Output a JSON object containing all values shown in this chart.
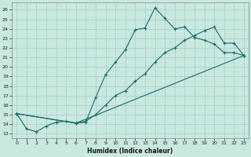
{
  "xlabel": "Humidex (Indice chaleur)",
  "xlim": [
    -0.5,
    23.5
  ],
  "ylim": [
    12.5,
    26.8
  ],
  "xticks": [
    0,
    1,
    2,
    3,
    4,
    5,
    6,
    7,
    8,
    9,
    10,
    11,
    12,
    13,
    14,
    15,
    16,
    17,
    18,
    19,
    20,
    21,
    22,
    23
  ],
  "yticks": [
    13,
    14,
    15,
    16,
    17,
    18,
    19,
    20,
    21,
    22,
    23,
    24,
    25,
    26
  ],
  "bg_color": "#c8e8e0",
  "grid_color": "#a8ccc8",
  "line_color": "#1a6b6b",
  "series1_x": [
    0,
    1,
    2,
    3,
    4,
    5,
    6,
    7,
    8,
    9,
    10,
    11,
    12,
    13,
    14,
    15,
    16,
    17,
    18,
    19,
    20,
    21,
    22,
    23
  ],
  "series1_y": [
    15.1,
    13.5,
    13.2,
    13.8,
    14.2,
    14.3,
    14.1,
    14.2,
    16.8,
    19.2,
    20.5,
    21.8,
    23.9,
    24.1,
    26.2,
    25.1,
    24.0,
    24.2,
    23.1,
    22.8,
    22.4,
    21.5,
    21.5,
    21.2
  ],
  "series2_x": [
    0,
    6,
    7,
    8,
    9,
    10,
    11,
    12,
    13,
    14,
    15,
    16,
    17,
    18,
    19,
    20,
    21,
    22,
    23
  ],
  "series2_y": [
    15.1,
    14.1,
    14.3,
    15.0,
    16.0,
    17.0,
    17.5,
    18.5,
    19.3,
    20.5,
    21.5,
    22.0,
    22.8,
    23.3,
    23.8,
    24.2,
    22.5,
    22.5,
    21.2
  ],
  "series3_x": [
    0,
    6,
    23
  ],
  "series3_y": [
    15.1,
    14.1,
    21.2
  ]
}
